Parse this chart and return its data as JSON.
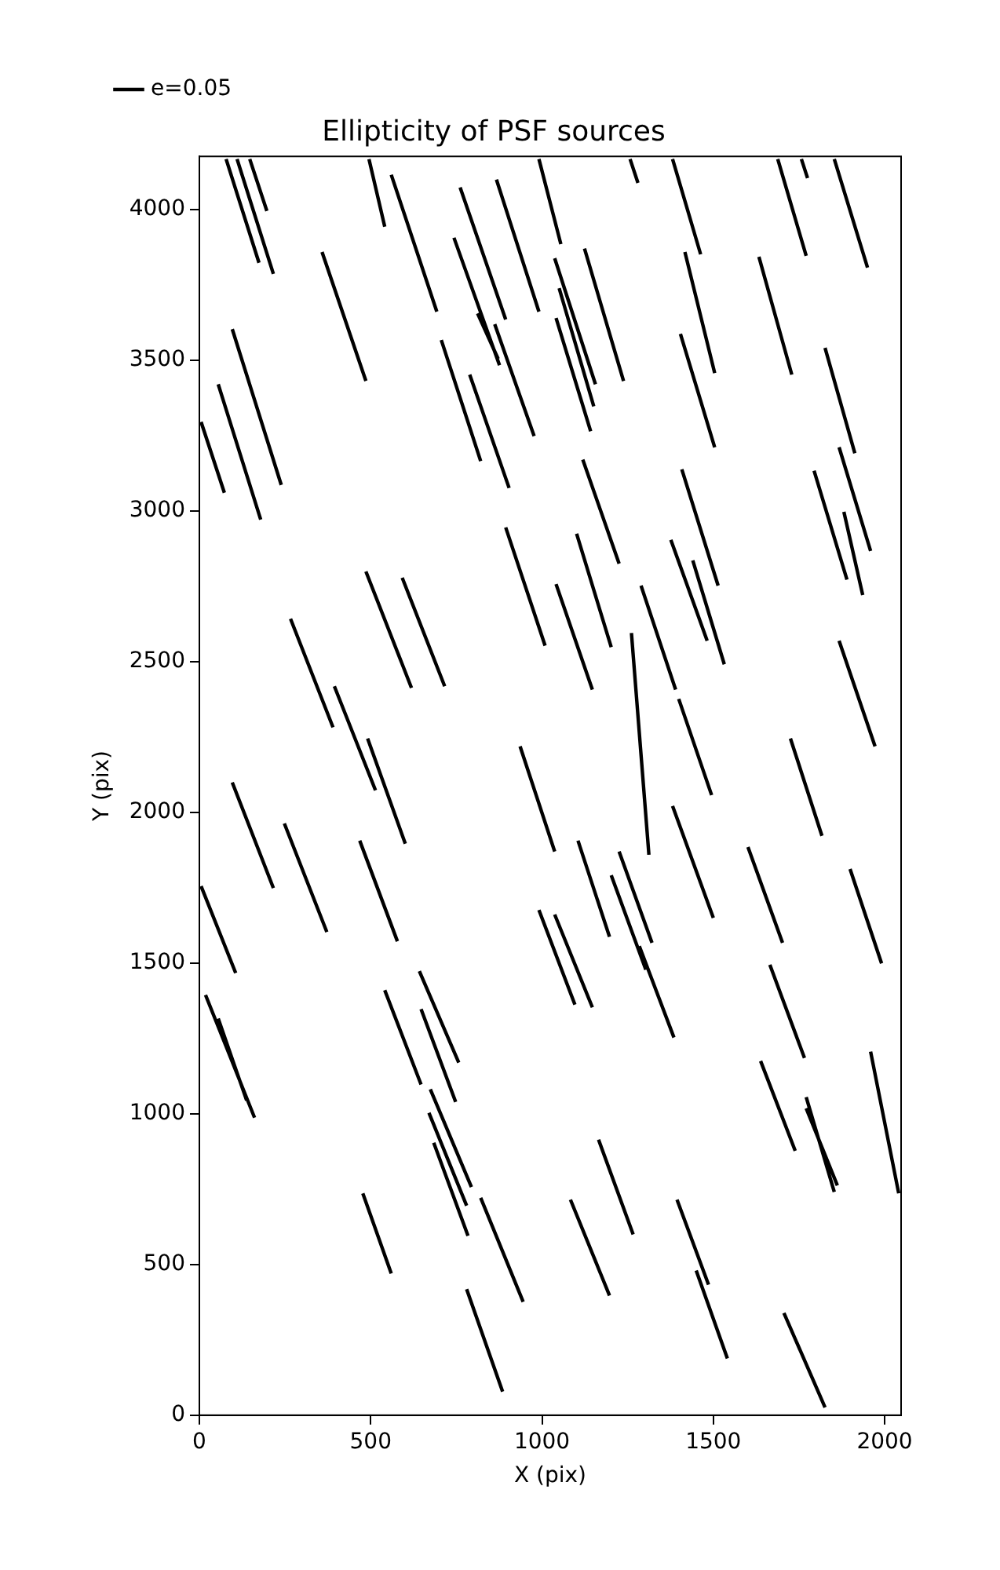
{
  "chart_data": {
    "type": "line",
    "title": "Ellipticity of PSF sources",
    "xlabel": "X (pix)",
    "ylabel": "Y (pix)",
    "xlim": [
      0,
      2048
    ],
    "ylim": [
      0,
      4176
    ],
    "xticks": [
      0,
      500,
      1000,
      1500,
      2000
    ],
    "yticks": [
      0,
      500,
      1000,
      1500,
      2000,
      2500,
      3000,
      3500,
      4000
    ],
    "grid": false,
    "legend": "top left",
    "marker": "none",
    "line_style": "solid",
    "series": [
      {
        "name": "e=0.05",
        "color": "#000000",
        "x": [
          78,
          174,
          null,
          110,
          216,
          null,
          147,
          197,
          null,
          495,
          541,
          null,
          560,
          693,
          null,
          358,
          486,
          null,
          761,
          894,
          null,
          867,
          991,
          null,
          743,
          876,
          null,
          812,
          872,
          null,
          862,
          977,
          null,
          706,
          821,
          null,
          789,
          904,
          null,
          96,
          239,
          null,
          55,
          179,
          null,
          5,
          73,
          null,
          894,
          1009,
          null,
          486,
          619,
          null,
          592,
          716,
          null,
          266,
          390,
          null,
          394,
          514,
          null,
          491,
          601,
          null,
          936,
          1037,
          null,
          96,
          216,
          null,
          991,
          1055,
          null,
          1257,
          1280,
          null,
          1381,
          1463,
          null,
          1688,
          1771,
          null,
          1757,
          1775,
          null,
          1853,
          1950,
          null,
          1124,
          1238,
          null,
          1037,
          1156,
          null,
          1050,
          1151,
          null,
          1041,
          1142,
          null,
          1417,
          1504,
          null,
          1404,
          1504,
          null,
          1633,
          1729,
          null,
          1826,
          1913,
          null,
          1867,
          1959,
          null,
          1794,
          1890,
          null,
          1881,
          1936,
          null,
          1119,
          1225,
          null,
          1408,
          1514,
          null,
          1376,
          1482,
          null,
          1440,
          1532,
          null,
          1101,
          1202,
          null,
          1041,
          1147,
          null,
          1289,
          1390,
          null,
          1261,
          1312,
          null,
          1399,
          1495,
          null,
          1725,
          1817,
          null,
          1867,
          1972,
          null,
          248,
          372,
          null,
          468,
          578,
          null,
          5,
          106,
          null,
          991,
          1096,
          null,
          18,
          161,
          null,
          55,
          138,
          null,
          541,
          647,
          null,
          642,
          757,
          null,
          647,
          748,
          null,
          674,
          794,
          null,
          670,
          780,
          null,
          684,
          784,
          null,
          477,
          560,
          null,
          821,
          945,
          null,
          780,
          885,
          null,
          1105,
          1197,
          null,
          1225,
          1321,
          null,
          1202,
          1303,
          null,
          1284,
          1385,
          null,
          1381,
          1500,
          null,
          1601,
          1702,
          null,
          1899,
          1991,
          null,
          1037,
          1147,
          null,
          1665,
          1766,
          null,
          1638,
          1739,
          null,
          1771,
          1853,
          null,
          1771,
          1862,
          null,
          1959,
          2041,
          null,
          1165,
          1266,
          null,
          1083,
          1197,
          null,
          1394,
          1486,
          null,
          1450,
          1541,
          null,
          1706,
          1826
        ],
        "values": [
          4167,
          3823,
          null,
          4167,
          3786,
          null,
          4167,
          3995,
          null,
          4167,
          3943,
          null,
          4115,
          3661,
          null,
          3859,
          3431,
          null,
          4073,
          3635,
          null,
          4099,
          3661,
          null,
          3906,
          3483,
          null,
          3655,
          3504,
          null,
          3619,
          3248,
          null,
          3567,
          3165,
          null,
          3452,
          3076,
          null,
          3603,
          3086,
          null,
          3420,
          2971,
          null,
          3295,
          3060,
          null,
          2945,
          2553,
          null,
          2799,
          2413,
          null,
          2778,
          2418,
          null,
          2642,
          2282,
          null,
          2418,
          2073,
          null,
          2245,
          1896,
          null,
          2219,
          1870,
          null,
          2099,
          1749,
          null,
          4167,
          3885,
          null,
          4167,
          4088,
          null,
          4167,
          3851,
          null,
          4167,
          3846,
          null,
          4167,
          4104,
          null,
          4167,
          3807,
          null,
          3870,
          3431,
          null,
          3838,
          3420,
          null,
          3739,
          3347,
          null,
          3640,
          3264,
          null,
          3859,
          3457,
          null,
          3587,
          3211,
          null,
          3843,
          3452,
          null,
          3541,
          3191,
          null,
          3211,
          2867,
          null,
          3133,
          2772,
          null,
          2997,
          2721,
          null,
          3170,
          2825,
          null,
          3138,
          2752,
          null,
          2904,
          2569,
          null,
          2836,
          2491,
          null,
          2924,
          2548,
          null,
          2757,
          2407,
          null,
          2752,
          2407,
          null,
          2595,
          1859,
          null,
          2376,
          2057,
          null,
          2245,
          1922,
          null,
          2569,
          2219,
          null,
          1963,
          1603,
          null,
          1906,
          1572,
          null,
          1755,
          1467,
          null,
          1676,
          1362,
          null,
          1394,
          987,
          null,
          1316,
          1044,
          null,
          1410,
          1097,
          null,
          1473,
          1170,
          null,
          1347,
          1039,
          null,
          1081,
          757,
          null,
          1003,
          695,
          null,
          904,
          595,
          null,
          736,
          470,
          null,
          721,
          376,
          null,
          418,
          78,
          null,
          1906,
          1587,
          null,
          1870,
          1567,
          null,
          1791,
          1478,
          null,
          1556,
          1253,
          null,
          2021,
          1650,
          null,
          1885,
          1567,
          null,
          1812,
          1499,
          null,
          1661,
          1353,
          null,
          1494,
          1185,
          null,
          1175,
          877,
          null,
          1055,
          741,
          null,
          1018,
          762,
          null,
          1206,
          736,
          null,
          914,
          600,
          null,
          715,
          397,
          null,
          715,
          433,
          null,
          480,
          188,
          null,
          339,
          26
        ]
      }
    ]
  }
}
